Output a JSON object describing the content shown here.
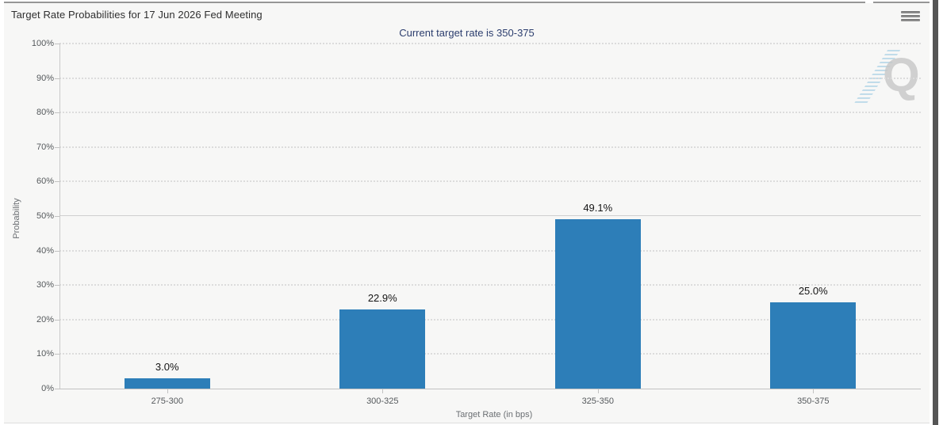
{
  "chart": {
    "title": "Target Rate Probabilities for 17 Jun 2026 Fed Meeting",
    "subtitle": "Current target rate is 350-375",
    "ylabel": "Probability",
    "xlabel": "Target Rate (in bps)"
  },
  "menu": {
    "icon": "hamburger-icon"
  },
  "watermark": {
    "letter": "Q"
  },
  "chart_data": {
    "type": "bar",
    "title": "Target Rate Probabilities for 17 Jun 2026 Fed Meeting",
    "subtitle": "Current target rate is 350-375",
    "categories": [
      "275-300",
      "300-325",
      "325-350",
      "350-375"
    ],
    "values": [
      3.0,
      22.9,
      49.1,
      25.0
    ],
    "value_labels": [
      "3.0%",
      "22.9%",
      "49.1%",
      "25.0%"
    ],
    "xlabel": "Target Rate (in bps)",
    "ylabel": "Probability",
    "ylim": [
      0,
      100
    ],
    "yticks": [
      0,
      10,
      20,
      30,
      40,
      50,
      60,
      70,
      80,
      90,
      100
    ],
    "ytick_labels": [
      "0%",
      "10%",
      "20%",
      "30%",
      "40%",
      "50%",
      "60%",
      "70%",
      "80%",
      "90%",
      "100%"
    ],
    "grid": "dotted horizontal, solid line at 50%",
    "legend": "none",
    "bar_color": "#2d7eb8",
    "label_color": "#141414"
  },
  "colors": {
    "card_background": "#f7f7f6",
    "page_background": "#ffffff",
    "top_border": "#969696",
    "subtitle_text": "#2c3e6e",
    "title_text": "#2f2f2f",
    "tick_text": "#55595c",
    "axis_title_text": "#6b6f73",
    "gridline": "#dcdcdc",
    "bar": "#2d7eb8",
    "scrollbar_thumb": "#555555",
    "watermark_q": "#c7c7c7",
    "watermark_slash": "#b7d7e8"
  }
}
